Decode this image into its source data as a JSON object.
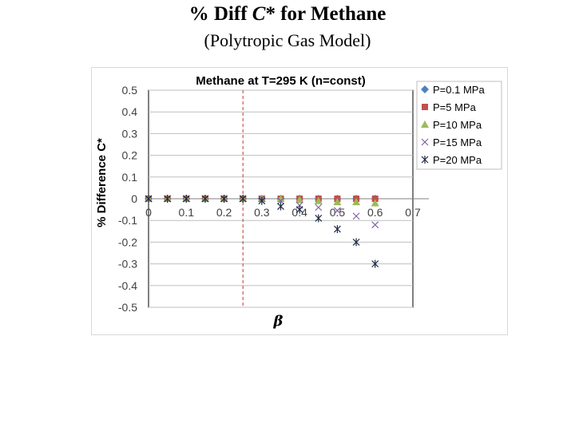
{
  "slide": {
    "title_prefix": "% Diff ",
    "title_var": "C",
    "title_suffix": "* for Methane",
    "subtitle": "(Polytropic Gas Model)"
  },
  "chart_data": {
    "type": "scatter",
    "title": "Methane at T=295 K (n=const)",
    "xlabel": "β",
    "ylabel": "% Difference C*",
    "xlim": [
      0,
      0.7
    ],
    "ylim": [
      -0.5,
      0.5
    ],
    "x_ticks": [
      "0",
      "0.1",
      "0.2",
      "0.3",
      "0.4",
      "0.5",
      "0.6",
      "0.7"
    ],
    "y_ticks": [
      "0.5",
      "0.4",
      "0.3",
      "0.2",
      "0.1",
      "0",
      "-0.1",
      "-0.2",
      "-0.3",
      "-0.4",
      "-0.5"
    ],
    "grid": true,
    "legend_position": "right",
    "vertical_reference_line": {
      "x": 0.25,
      "color": "#c0392b",
      "style": "dashed"
    },
    "series": [
      {
        "name": "P=0.1 MPa",
        "marker": "diamond",
        "color": "#4f81bd",
        "x": [
          0,
          0.05,
          0.1,
          0.15,
          0.2,
          0.25,
          0.3,
          0.35,
          0.4,
          0.45,
          0.5,
          0.55,
          0.6
        ],
        "y": [
          0,
          0,
          0,
          0,
          0,
          0,
          0,
          0,
          0,
          0,
          0,
          0,
          0
        ]
      },
      {
        "name": "P=5 MPa",
        "marker": "square",
        "color": "#c0504d",
        "x": [
          0,
          0.05,
          0.1,
          0.15,
          0.2,
          0.25,
          0.3,
          0.35,
          0.4,
          0.45,
          0.5,
          0.55,
          0.6
        ],
        "y": [
          0,
          0,
          0,
          0,
          0,
          0,
          0,
          0,
          0,
          0,
          0,
          0,
          0
        ]
      },
      {
        "name": "P=10 MPa",
        "marker": "triangle",
        "color": "#9bbb59",
        "x": [
          0,
          0.05,
          0.1,
          0.15,
          0.2,
          0.25,
          0.3,
          0.35,
          0.4,
          0.45,
          0.5,
          0.55,
          0.6
        ],
        "y": [
          0,
          0,
          0,
          0,
          0,
          0,
          0,
          0,
          -0.005,
          -0.01,
          -0.015,
          -0.015,
          -0.02
        ]
      },
      {
        "name": "P=15 MPa",
        "marker": "x",
        "color": "#8064a2",
        "x": [
          0,
          0.05,
          0.1,
          0.15,
          0.2,
          0.25,
          0.3,
          0.35,
          0.4,
          0.45,
          0.5,
          0.55,
          0.6
        ],
        "y": [
          0,
          0,
          0,
          0,
          0,
          0,
          0,
          -0.01,
          -0.03,
          -0.04,
          -0.055,
          -0.08,
          -0.12
        ]
      },
      {
        "name": "P=20 MPa",
        "marker": "star",
        "color": "#1f2a44",
        "x": [
          0,
          0.05,
          0.1,
          0.15,
          0.2,
          0.25,
          0.3,
          0.35,
          0.4,
          0.45,
          0.5,
          0.55,
          0.6
        ],
        "y": [
          0,
          0,
          0,
          0,
          0,
          0,
          -0.01,
          -0.035,
          -0.05,
          -0.09,
          -0.14,
          -0.2,
          -0.3
        ]
      }
    ]
  }
}
